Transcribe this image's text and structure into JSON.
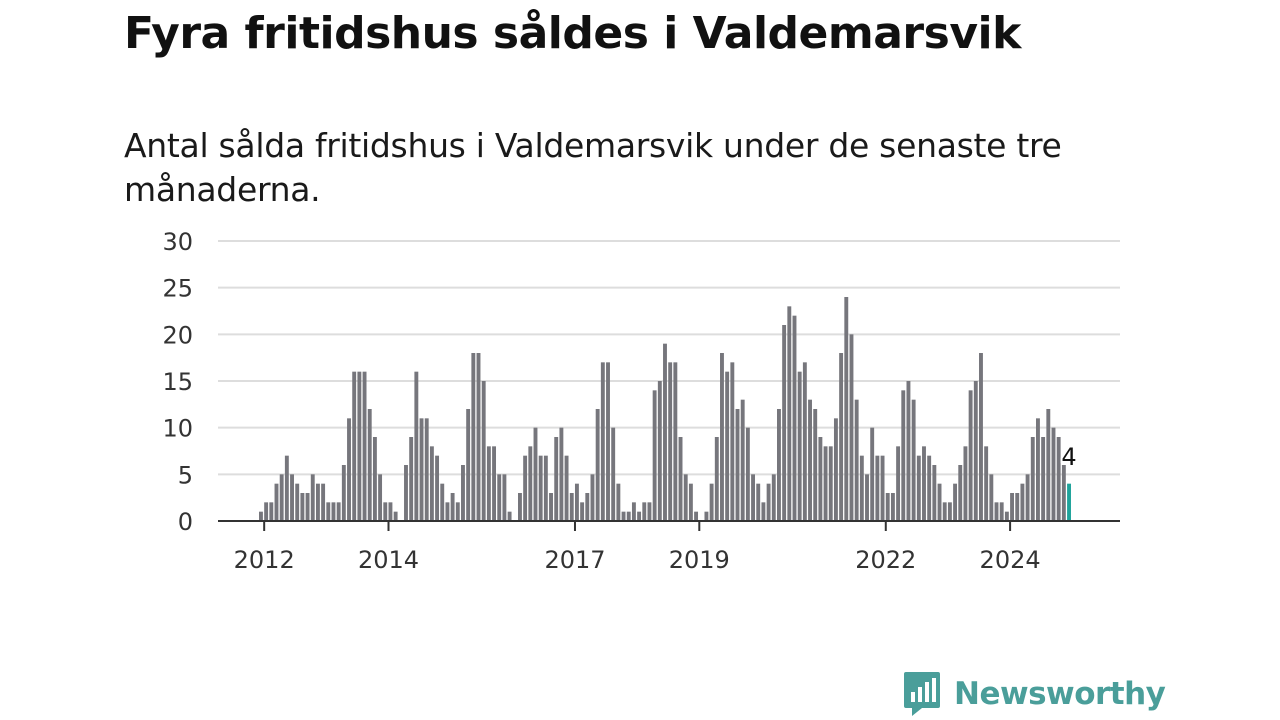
{
  "header": {
    "title": "Fyra fritidshus såldes i Valdemarsvik",
    "subtitle": "Antal sålda fritidshus i Valdemarsvik under de senaste tre månaderna."
  },
  "brand": {
    "name": "Newsworthy",
    "icon": "newsworthy-logo-icon"
  },
  "colors": {
    "bar": "#76767c",
    "highlight": "#1fa39b",
    "grid": "#dddddd",
    "axis": "#333333",
    "brand": "#4a9e9a"
  },
  "chart_data": {
    "type": "bar",
    "y_ticks": [
      0,
      5,
      10,
      15,
      20,
      25,
      30
    ],
    "ylim": [
      0,
      30
    ],
    "x_ticks": [
      "2012",
      "2014",
      "2017",
      "2019",
      "2022",
      "2024"
    ],
    "grid": true,
    "values": [
      1,
      2,
      2,
      4,
      5,
      7,
      5,
      4,
      3,
      3,
      5,
      4,
      4,
      2,
      2,
      2,
      6,
      11,
      16,
      16,
      16,
      12,
      9,
      5,
      2,
      2,
      1,
      0,
      6,
      9,
      16,
      11,
      11,
      8,
      7,
      4,
      2,
      3,
      2,
      6,
      12,
      18,
      18,
      15,
      8,
      8,
      5,
      5,
      1,
      0,
      3,
      7,
      8,
      10,
      7,
      7,
      3,
      9,
      10,
      7,
      3,
      4,
      2,
      3,
      5,
      12,
      17,
      17,
      10,
      4,
      1,
      1,
      2,
      1,
      2,
      2,
      14,
      15,
      19,
      17,
      17,
      9,
      5,
      4,
      1,
      0,
      1,
      4,
      9,
      18,
      16,
      17,
      12,
      13,
      10,
      5,
      4,
      2,
      4,
      5,
      12,
      21,
      23,
      22,
      16,
      17,
      13,
      12,
      9,
      8,
      8,
      11,
      18,
      24,
      20,
      13,
      7,
      5,
      10,
      7,
      7,
      3,
      3,
      8,
      14,
      15,
      13,
      7,
      8,
      7,
      6,
      4,
      2,
      2,
      4,
      6,
      8,
      14,
      15,
      18,
      8,
      5,
      2,
      2,
      1,
      3,
      3,
      4,
      5,
      9,
      11,
      9,
      12,
      10,
      9,
      6,
      4
    ],
    "highlight_last": true,
    "value_label": "4"
  }
}
